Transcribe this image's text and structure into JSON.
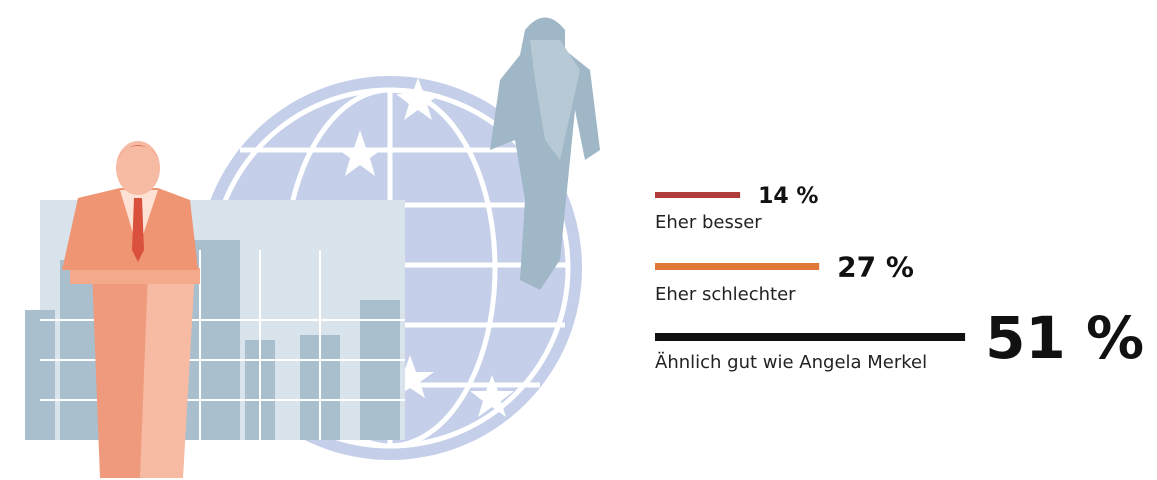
{
  "chart_data": {
    "type": "bar",
    "categories": [
      "Eher besser",
      "Eher schlechter",
      "Ähnlich gut wie Angela Merkel"
    ],
    "values": [
      14,
      27,
      51
    ],
    "value_labels": [
      "14 %",
      "27 %",
      "51 %"
    ],
    "colors": [
      "#b03c3c",
      "#e07838",
      "#111111"
    ]
  }
}
